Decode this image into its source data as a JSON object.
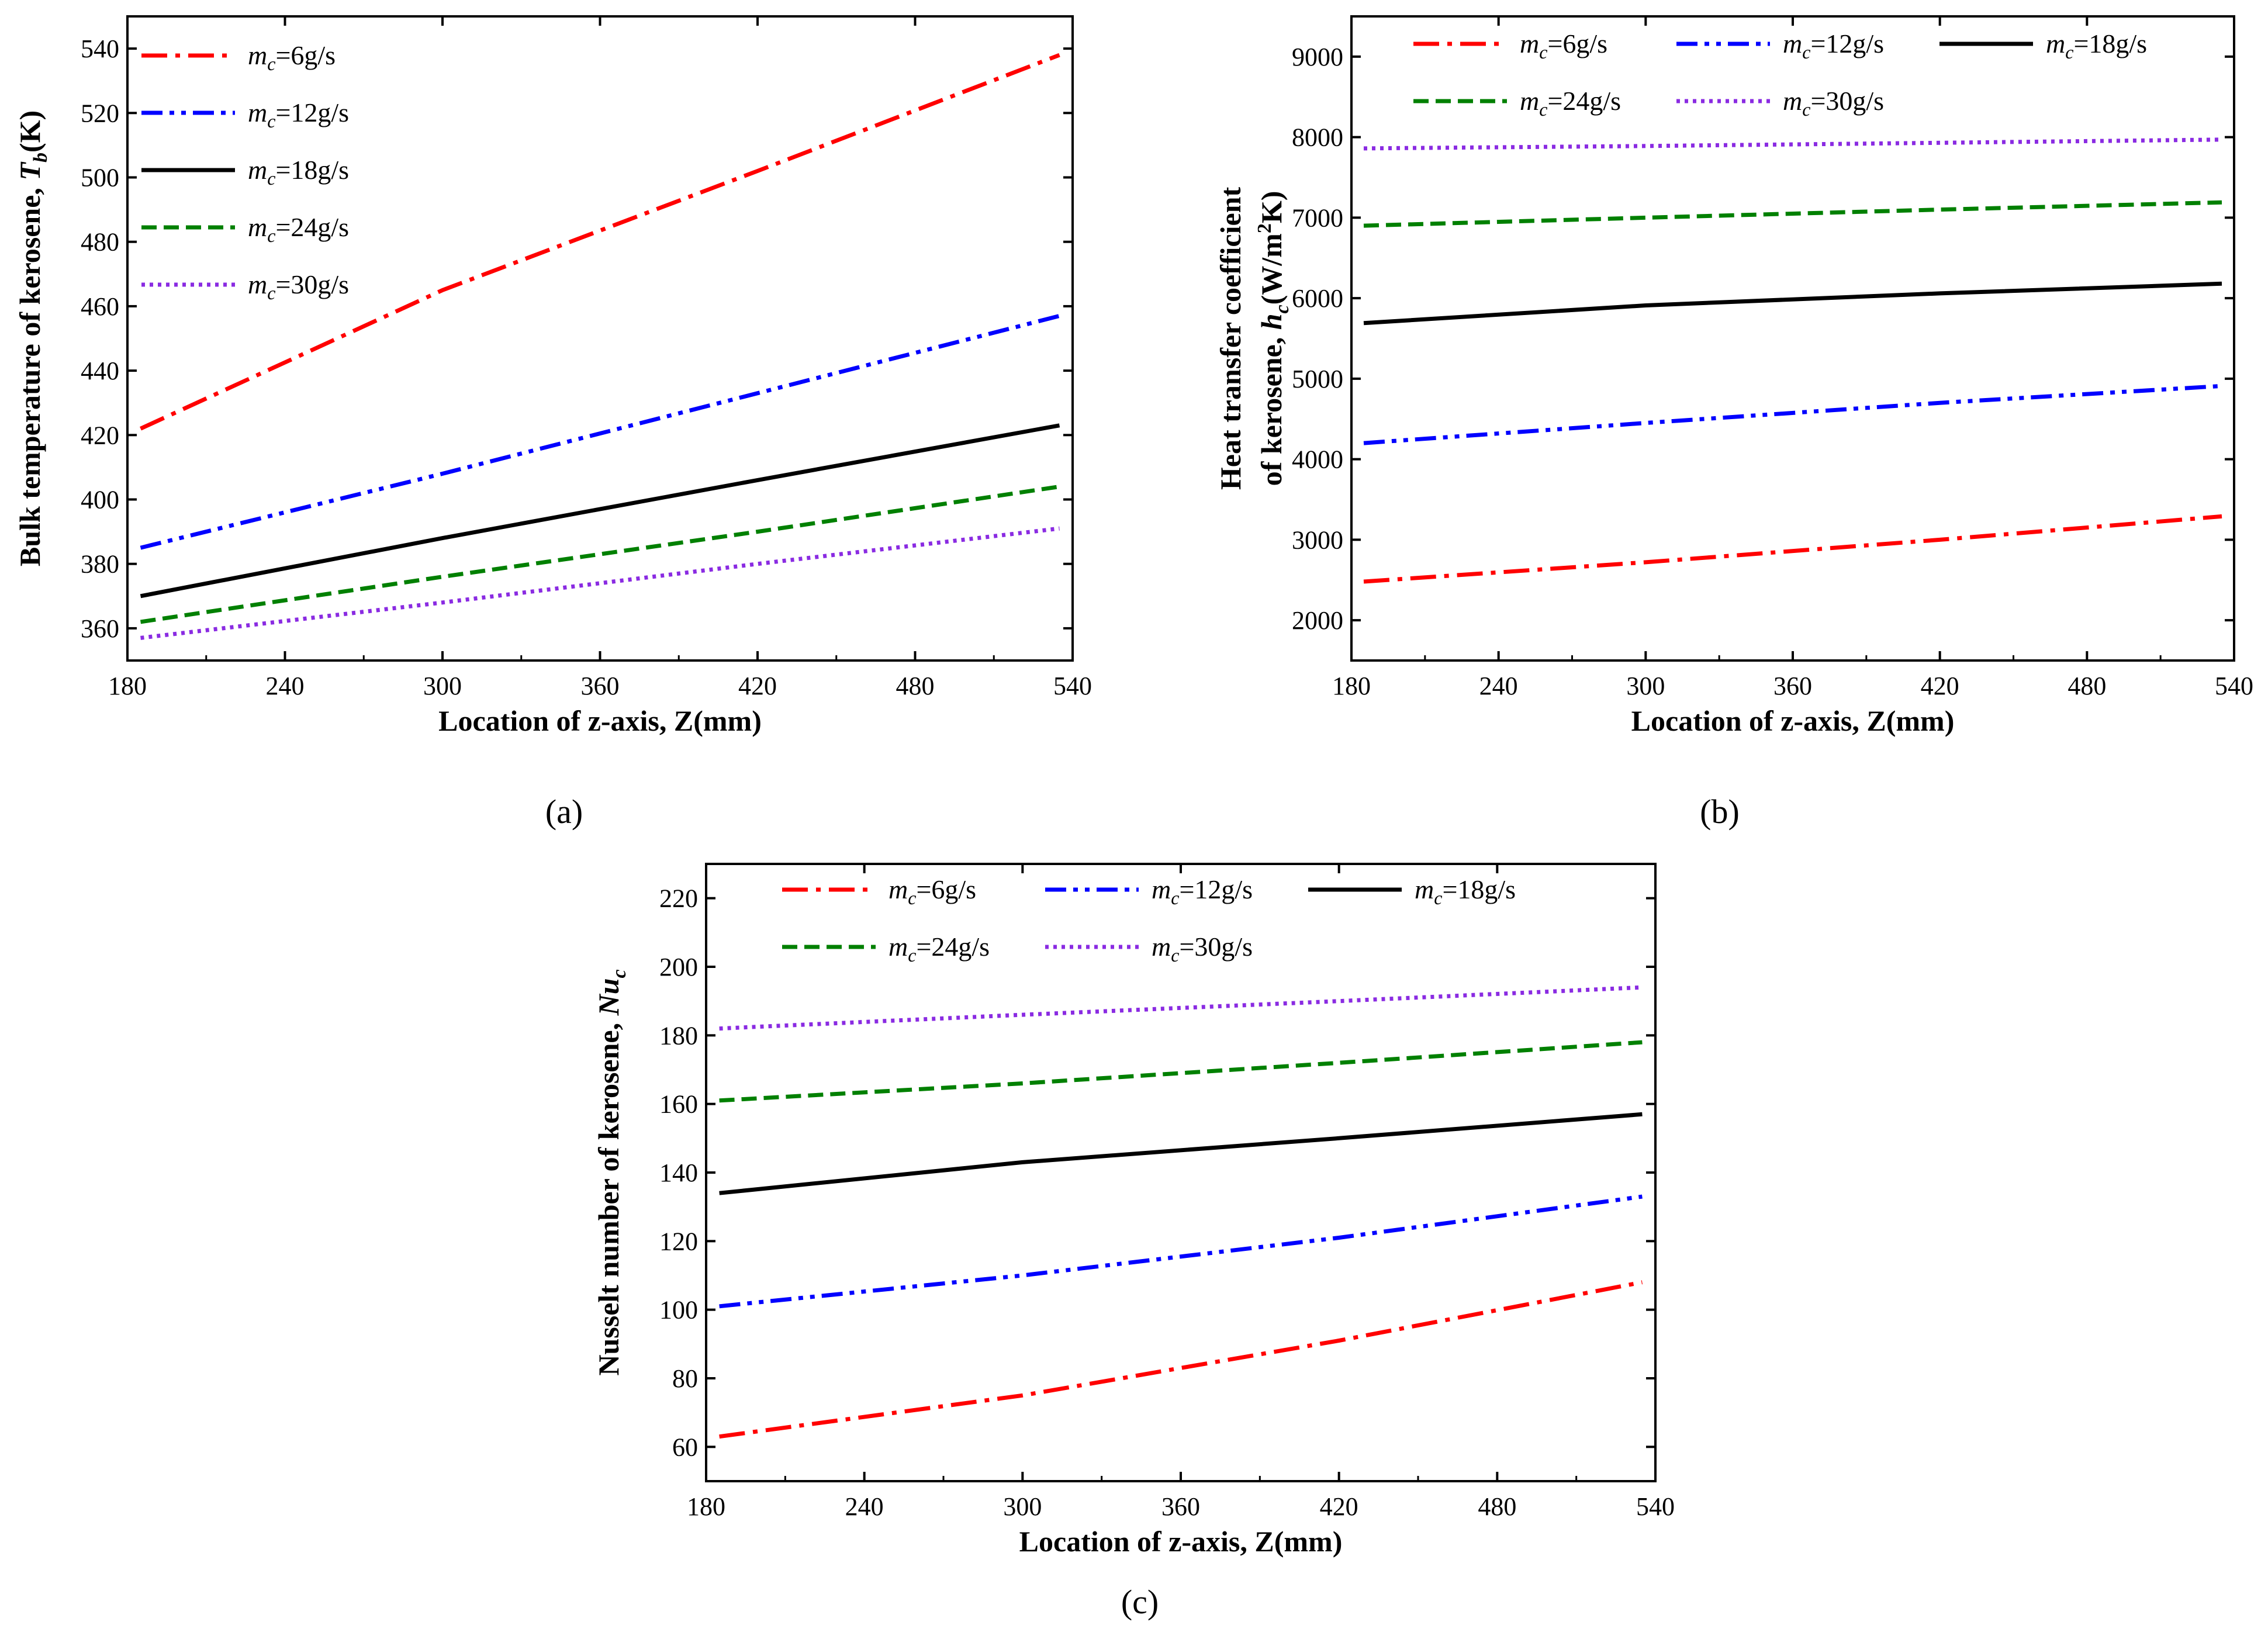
{
  "chart_data": [
    {
      "id": "a",
      "type": "line",
      "panel_label": "(a)",
      "title": "",
      "xlabel": "Location of z-axis, Z(mm)",
      "ylabel": "Bulk temperature of kerosene, T_b(K)",
      "ylabel_main": "Bulk temperature of kerosene, ",
      "ylabel_sym": "T",
      "ylabel_sub": "b",
      "ylabel_tail": "(K)",
      "xlim": [
        180,
        540
      ],
      "ylim": [
        350,
        550
      ],
      "xticks": [
        "180",
        "240",
        "300",
        "360",
        "420",
        "480",
        "540"
      ],
      "yticks": [
        "360",
        "380",
        "400",
        "420",
        "440",
        "460",
        "480",
        "500",
        "520",
        "540"
      ],
      "legend_position": "top-left",
      "series": [
        {
          "name": "m_c=6g/s",
          "flow": "=6g/s",
          "color": "#ff0000",
          "style": "dashdot",
          "x": [
            185,
            300,
            420,
            535
          ],
          "y": [
            422,
            465,
            502,
            538
          ]
        },
        {
          "name": "m_c=12g/s",
          "flow": "=12g/s",
          "color": "#0000ff",
          "style": "dashdotdot",
          "x": [
            185,
            300,
            420,
            535
          ],
          "y": [
            385,
            408,
            433,
            457
          ]
        },
        {
          "name": "m_c=18g/s",
          "flow": "=18g/s",
          "color": "#000000",
          "style": "solid",
          "x": [
            185,
            300,
            420,
            535
          ],
          "y": [
            370,
            388,
            406,
            423
          ]
        },
        {
          "name": "m_c=24g/s",
          "flow": "=24g/s",
          "color": "#008000",
          "style": "dash",
          "x": [
            185,
            300,
            420,
            535
          ],
          "y": [
            362,
            376,
            390,
            404
          ]
        },
        {
          "name": "m_c=30g/s",
          "flow": "=30g/s",
          "color": "#8a2be2",
          "style": "dot",
          "x": [
            185,
            300,
            420,
            535
          ],
          "y": [
            357,
            368,
            380,
            391
          ]
        }
      ]
    },
    {
      "id": "b",
      "type": "line",
      "panel_label": "(b)",
      "title": "",
      "xlabel": "Location of z-axis, Z(mm)",
      "ylabel": "Heat transfer coefficient of kerosene, h_c(W/m^2K)",
      "ylabel_line1": "Heat transfer coefficient",
      "ylabel_main": "of kerosene, ",
      "ylabel_sym": "h",
      "ylabel_sub": "c",
      "ylabel_tail_a": "(W/m",
      "ylabel_sup": "2",
      "ylabel_tail_b": "K)",
      "xlim": [
        180,
        540
      ],
      "ylim": [
        1500,
        9500
      ],
      "xticks": [
        "180",
        "240",
        "300",
        "360",
        "420",
        "480",
        "540"
      ],
      "yticks": [
        "2000",
        "3000",
        "4000",
        "5000",
        "6000",
        "7000",
        "8000",
        "9000"
      ],
      "legend_position": "top",
      "series": [
        {
          "name": "m_c=6g/s",
          "flow": "=6g/s",
          "color": "#ff0000",
          "style": "dashdot",
          "x": [
            185,
            300,
            420,
            535
          ],
          "y": [
            2480,
            2720,
            3000,
            3290
          ]
        },
        {
          "name": "m_c=12g/s",
          "flow": "=12g/s",
          "color": "#0000ff",
          "style": "dashdotdot",
          "x": [
            185,
            300,
            420,
            535
          ],
          "y": [
            4200,
            4450,
            4700,
            4910
          ]
        },
        {
          "name": "m_c=18g/s",
          "flow": "=18g/s",
          "color": "#000000",
          "style": "solid",
          "x": [
            185,
            300,
            420,
            535
          ],
          "y": [
            5690,
            5910,
            6060,
            6180
          ]
        },
        {
          "name": "m_c=24g/s",
          "flow": "=24g/s",
          "color": "#008000",
          "style": "dash",
          "x": [
            185,
            300,
            420,
            535
          ],
          "y": [
            6900,
            7000,
            7100,
            7190
          ]
        },
        {
          "name": "m_c=30g/s",
          "flow": "=30g/s",
          "color": "#8a2be2",
          "style": "dot",
          "x": [
            185,
            300,
            420,
            535
          ],
          "y": [
            7860,
            7890,
            7930,
            7970
          ]
        }
      ]
    },
    {
      "id": "c",
      "type": "line",
      "panel_label": "(c)",
      "title": "",
      "xlabel": "Location of z-axis, Z(mm)",
      "ylabel": "Nusselt number of kerosene, Nu_c",
      "ylabel_main": "Nusselt number of kerosene, ",
      "ylabel_sym": "Nu",
      "ylabel_sub": "c",
      "ylabel_tail": "",
      "xlim": [
        180,
        540
      ],
      "ylim": [
        50,
        230
      ],
      "xticks": [
        "180",
        "240",
        "300",
        "360",
        "420",
        "480",
        "540"
      ],
      "yticks": [
        "60",
        "80",
        "100",
        "120",
        "140",
        "160",
        "180",
        "200",
        "220"
      ],
      "legend_position": "top",
      "series": [
        {
          "name": "m_c=6g/s",
          "flow": "=6g/s",
          "color": "#ff0000",
          "style": "dashdot",
          "x": [
            185,
            300,
            420,
            535
          ],
          "y": [
            63,
            75,
            91,
            108
          ]
        },
        {
          "name": "m_c=12g/s",
          "flow": "=12g/s",
          "color": "#0000ff",
          "style": "dashdotdot",
          "x": [
            185,
            300,
            420,
            535
          ],
          "y": [
            101,
            110,
            121,
            133
          ]
        },
        {
          "name": "m_c=18g/s",
          "flow": "=18g/s",
          "color": "#000000",
          "style": "solid",
          "x": [
            185,
            300,
            420,
            535
          ],
          "y": [
            134,
            143,
            150,
            157
          ]
        },
        {
          "name": "m_c=24g/s",
          "flow": "=24g/s",
          "color": "#008000",
          "style": "dash",
          "x": [
            185,
            300,
            420,
            535
          ],
          "y": [
            161,
            166,
            172,
            178
          ]
        },
        {
          "name": "m_c=30g/s",
          "flow": "=30g/s",
          "color": "#8a2be2",
          "style": "dot",
          "x": [
            185,
            300,
            420,
            535
          ],
          "y": [
            182,
            186,
            190,
            194
          ]
        }
      ]
    }
  ]
}
